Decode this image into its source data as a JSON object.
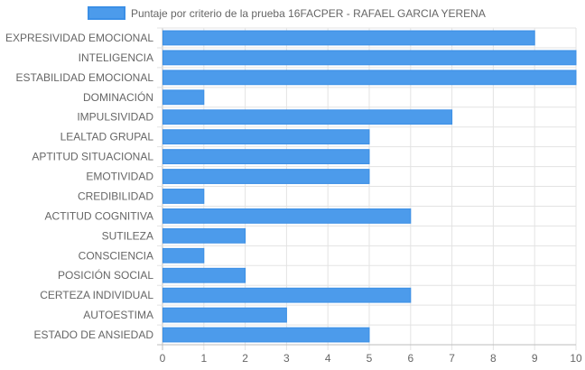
{
  "chart_data": {
    "type": "bar",
    "orientation": "horizontal",
    "legend": {
      "label": "Puntaje por criterio de la prueba 16FACPER - RAFAEL GARCIA YERENA",
      "placement": "top-center"
    },
    "categories": [
      "EXPRESIVIDAD EMOCIONAL",
      "INTELIGENCIA",
      "ESTABILIDAD EMOCIONAL",
      "DOMINACIÓN",
      "IMPULSIVIDAD",
      "LEALTAD GRUPAL",
      "APTITUD SITUACIONAL",
      "EMOTIVIDAD",
      "CREDIBILIDAD",
      "ACTITUD COGNITIVA",
      "SUTILEZA",
      "CONSCIENCIA",
      "POSICIÓN SOCIAL",
      "CERTEZA INDIVIDUAL",
      "AUTOESTIMA",
      "ESTADO DE ANSIEDAD"
    ],
    "series": [
      {
        "name": "Puntaje por criterio de la prueba 16FACPER - RAFAEL GARCIA YERENA",
        "values": [
          9,
          10,
          10,
          1,
          7,
          5,
          5,
          5,
          1,
          6,
          2,
          1,
          2,
          6,
          3,
          5
        ]
      }
    ],
    "xlim": [
      0,
      10
    ],
    "x_ticks": [
      "0",
      "1",
      "2",
      "3",
      "4",
      "5",
      "6",
      "7",
      "8",
      "9",
      "10"
    ],
    "grid": true,
    "colors": {
      "bar_fill": "#4c9beb",
      "bar_stroke": "#3b8fe6",
      "grid": "#e3e3e3",
      "grid_axis": "#bdbdbd",
      "text": "#666666"
    }
  }
}
